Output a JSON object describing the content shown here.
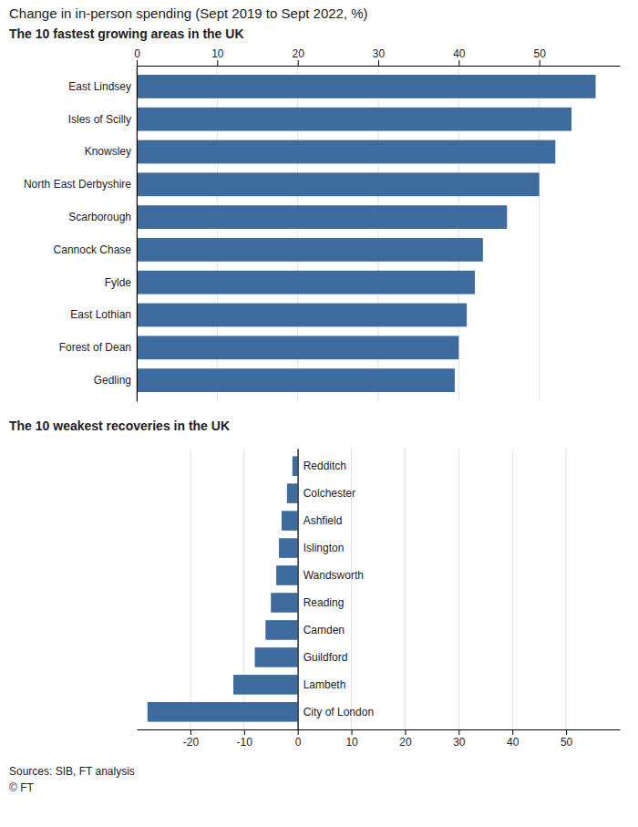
{
  "chart_data": [
    {
      "type": "bar",
      "orientation": "horizontal",
      "title": "Change in in-person spending (Sept 2019 to Sept 2022, %)",
      "subtitle": "The 10 fastest growing areas in the UK",
      "categories": [
        "East Lindsey",
        "Isles of Scilly",
        "Knowsley",
        "North East Derbyshire",
        "Scarborough",
        "Cannock Chase",
        "Fylde",
        "East Lothian",
        "Forest of Dean",
        "Gedling"
      ],
      "values": [
        57.0,
        54.0,
        52.0,
        50.0,
        46.0,
        43.0,
        42.0,
        41.0,
        40.0,
        39.5
      ],
      "color": "#3d6b9e",
      "xlim": [
        0,
        60
      ],
      "xticks": [
        0,
        10,
        20,
        30,
        40,
        50
      ],
      "grid": true
    },
    {
      "type": "bar",
      "orientation": "horizontal",
      "subtitle": "The 10 weakest recoveries in the UK",
      "categories": [
        "Redditch",
        "Colchester",
        "Ashfield",
        "Islington",
        "Wandsworth",
        "Reading",
        "Camden",
        "Guildford",
        "Lambeth",
        "City of London"
      ],
      "values": [
        -1.0,
        -2.0,
        -3.0,
        -3.5,
        -4.0,
        -5.0,
        -6.0,
        -8.0,
        -12.0,
        -28.0
      ],
      "color": "#3d6b9e",
      "xlim": [
        -30,
        60
      ],
      "xticks": [
        -20,
        -10,
        0,
        10,
        20,
        30,
        40,
        50
      ],
      "grid": true,
      "annotations": [
        "Sources: SIB, FT analysis",
        "© FT"
      ]
    }
  ]
}
